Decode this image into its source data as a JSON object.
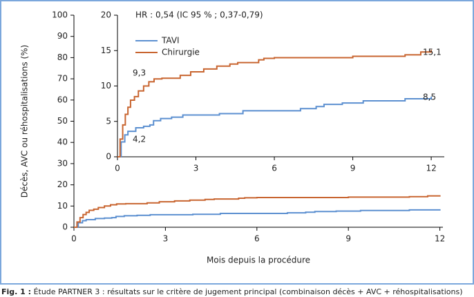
{
  "chart_data": [
    {
      "type": "line",
      "step": true,
      "xlabel": "Mois depuis la procédure",
      "ylabel": "Décès, AVC ou réhospitalisations (%)",
      "xlim": [
        0,
        12.1
      ],
      "ylim": [
        0,
        100
      ],
      "xticks": [
        0,
        3,
        6,
        9,
        12
      ],
      "yticks": [
        0,
        10,
        20,
        30,
        40,
        50,
        60,
        70,
        80,
        90,
        100
      ],
      "series": [
        {
          "name": "TAVI",
          "color": "#5b8fd0",
          "x": [
            0,
            0.14,
            0.28,
            0.4,
            0.7,
            1.0,
            1.24,
            1.38,
            1.65,
            2.07,
            2.5,
            3.9,
            4.8,
            7.0,
            7.6,
            7.9,
            8.6,
            9.4,
            11.0,
            12
          ],
          "values": [
            0,
            2.1,
            3.1,
            3.6,
            4.1,
            4.3,
            4.5,
            5.1,
            5.4,
            5.6,
            5.9,
            6.1,
            6.5,
            6.8,
            7.1,
            7.4,
            7.6,
            7.9,
            8.2,
            8.5
          ]
        },
        {
          "name": "Chirurgie",
          "color": "#c8642f",
          "x": [
            0,
            0.1,
            0.2,
            0.3,
            0.4,
            0.5,
            0.65,
            0.8,
            1.0,
            1.2,
            1.4,
            1.7,
            2.4,
            2.8,
            3.3,
            3.8,
            4.3,
            4.6,
            5.4,
            5.6,
            6.0,
            9.0,
            11.0,
            11.6,
            12
          ],
          "values": [
            0,
            2.5,
            4.5,
            6,
            7,
            8,
            8.5,
            9.3,
            10,
            10.6,
            11,
            11.1,
            11.5,
            12,
            12.4,
            12.8,
            13.1,
            13.3,
            13.7,
            13.9,
            14,
            14.2,
            14.4,
            14.8,
            15.1
          ]
        }
      ]
    },
    {
      "type": "line",
      "step": true,
      "legend": "upper left",
      "annotation": "HR : 0,54 (IC 95 % ; 0,37-0,79)",
      "value_notes": [
        "9,3",
        "4,2",
        "15,1",
        "8,5"
      ],
      "xlim": [
        0,
        12.5
      ],
      "ylim": [
        0,
        20
      ],
      "xticks": [
        0,
        3,
        6,
        9,
        12
      ],
      "yticks": [
        0,
        5,
        10,
        15,
        20
      ],
      "series": [
        {
          "name": "TAVI",
          "color": "#5b8fd0",
          "x": [
            0,
            0.14,
            0.28,
            0.4,
            0.7,
            1.0,
            1.24,
            1.38,
            1.65,
            2.07,
            2.5,
            3.9,
            4.8,
            7.0,
            7.6,
            7.9,
            8.6,
            9.4,
            11.0,
            12
          ],
          "values": [
            0,
            2.1,
            3.1,
            3.6,
            4.1,
            4.3,
            4.5,
            5.1,
            5.4,
            5.6,
            5.9,
            6.1,
            6.5,
            6.8,
            7.1,
            7.4,
            7.6,
            7.9,
            8.2,
            8.5
          ]
        },
        {
          "name": "Chirurgie",
          "color": "#c8642f",
          "x": [
            0,
            0.1,
            0.2,
            0.3,
            0.4,
            0.5,
            0.65,
            0.8,
            1.0,
            1.2,
            1.4,
            1.7,
            2.4,
            2.8,
            3.3,
            3.8,
            4.3,
            4.6,
            5.4,
            5.6,
            6.0,
            9.0,
            11.0,
            11.6,
            12
          ],
          "values": [
            0,
            2.5,
            4.5,
            6,
            7,
            8,
            8.5,
            9.3,
            10,
            10.6,
            11,
            11.1,
            11.5,
            12,
            12.4,
            12.8,
            13.1,
            13.3,
            13.7,
            13.9,
            14,
            14.2,
            14.4,
            14.8,
            15.1
          ]
        }
      ]
    }
  ],
  "caption": {
    "label": "Fig. 1 :",
    "text": "Étude PARTNER 3 : résultats sur le critère de jugement principal (combinaison décès + AVC + réhospitalisations)"
  }
}
